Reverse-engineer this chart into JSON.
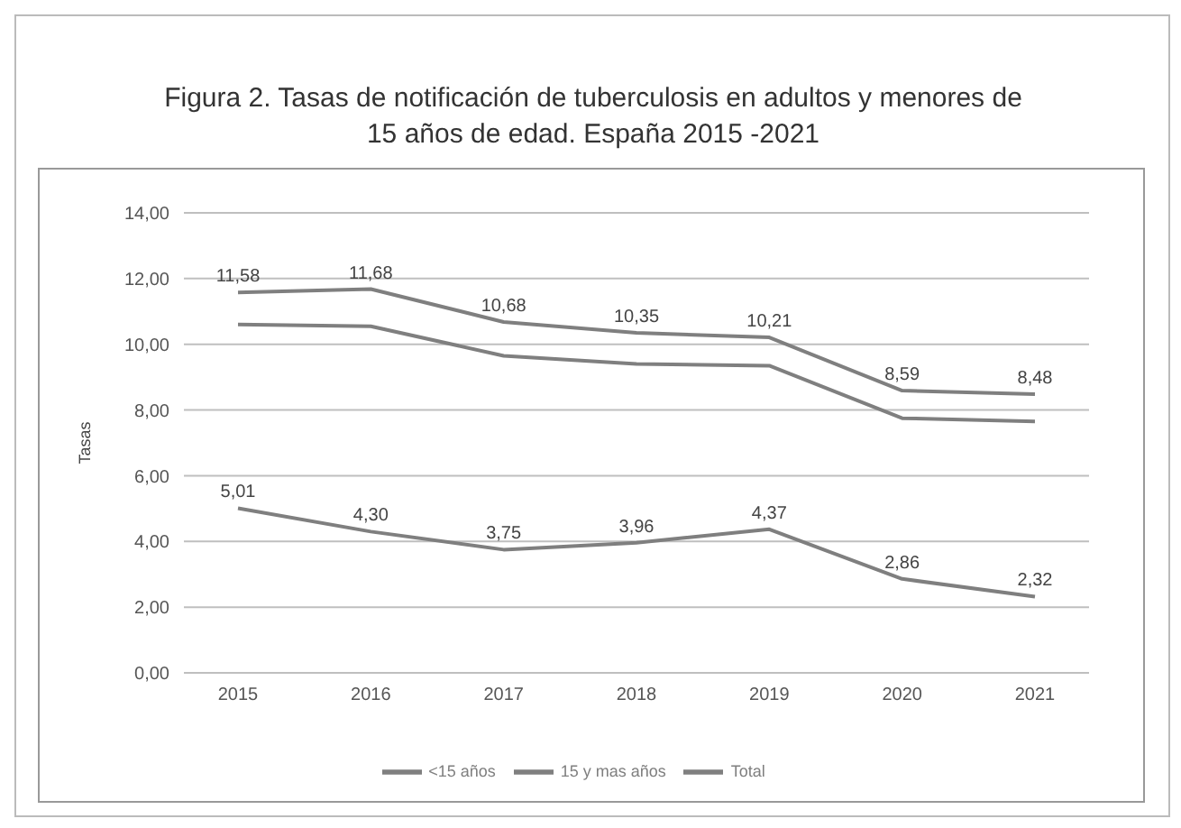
{
  "chart_data": {
    "type": "line",
    "title": "Figura 2. Tasas de notificación de tuberculosis en adultos y menores de 15 años de edad. España 2015 -2021",
    "ylabel": "Tasas",
    "categories": [
      "2015",
      "2016",
      "2017",
      "2018",
      "2019",
      "2020",
      "2021"
    ],
    "series": [
      {
        "name": "<15 años",
        "color": "#7f7f7f",
        "values": [
          5.01,
          4.3,
          3.75,
          3.96,
          4.37,
          2.86,
          2.32
        ],
        "value_labels": [
          "5,01",
          "4,30",
          "3,75",
          "3,96",
          "4,37",
          "2,86",
          "2,32"
        ]
      },
      {
        "name": "15 y mas años",
        "color": "#7f7f7f",
        "values": [
          11.58,
          11.68,
          10.68,
          10.35,
          10.21,
          8.59,
          8.48
        ],
        "value_labels": [
          "11,58",
          "11,68",
          "10,68",
          "10,35",
          "10,21",
          "8,59",
          "8,48"
        ]
      },
      {
        "name": "Total",
        "color": "#7f7f7f",
        "values": [
          10.6,
          10.55,
          9.65,
          9.4,
          9.35,
          7.75,
          7.65
        ]
      }
    ],
    "ylim": [
      0,
      14
    ],
    "yticks": [
      {
        "value": 0,
        "label": "0,00"
      },
      {
        "value": 2,
        "label": "2,00"
      },
      {
        "value": 4,
        "label": "4,00"
      },
      {
        "value": 6,
        "label": "6,00"
      },
      {
        "value": 8,
        "label": "8,00"
      },
      {
        "value": 10,
        "label": "10,00"
      },
      {
        "value": 12,
        "label": "12,00"
      },
      {
        "value": 14,
        "label": "14,00"
      }
    ],
    "grid": "y",
    "legend": "bottom",
    "marker": "none",
    "line_style": "solid"
  }
}
